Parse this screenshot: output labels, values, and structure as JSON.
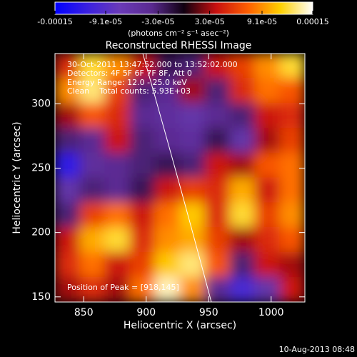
{
  "chart_data": {
    "type": "heatmap",
    "title": "Reconstructed RHESSI Image",
    "xlabel": "Heliocentric X (arcsec)",
    "ylabel": "Heliocentric Y (arcsec)",
    "annotations": [
      "30-Oct-2011 13:47:52.000 to 13:52:02.000",
      "Detectors: 4F 5F 6F 7F 8F, Att 0",
      "Energy Range: 12.0 - 25.0 keV",
      "Clean    Total counts: 5.93E+03"
    ],
    "peak_label": "Position of Peak = [918,145]",
    "footer": "10-Aug-2013 08:48",
    "colorbar_label": "(photons cm⁻² s⁻¹ asec⁻²)",
    "colors": [
      "#0000ff",
      "#3a20e0",
      "#6a3ab8",
      "#5a2a90",
      "#100010",
      "#c81010",
      "#ff6000",
      "#ffd000",
      "#ffffff"
    ],
    "zlim": [
      -0.00015,
      0.00015
    ],
    "zticks": [
      -0.00015,
      {
        "value": -9.1e-05,
        "label": "-9.1e-05"
      },
      {
        "value": -3e-05,
        "label": "-3.0e-05"
      },
      {
        "value": 3e-05,
        "label": "3.0e-05"
      },
      {
        "value": 9.1e-05,
        "label": "9.1e-05"
      },
      0.00015
    ],
    "xlim": [
      827,
      1027
    ],
    "xticks": [
      850,
      900,
      950,
      1000
    ],
    "ylim": [
      146,
      339
    ],
    "yticks": [
      150,
      200,
      250,
      300
    ],
    "z": [
      [
        5e-05,
        0.00012,
        9e-05,
        4e-05,
        -2e-05,
        -3e-05,
        4e-05,
        6e-05,
        9e-05,
        0.00012
      ],
      [
        9e-05,
        0.00013,
        6e-05,
        -3e-05,
        -4e-05,
        3e-05,
        -3e-05,
        5e-05,
        8e-05,
        7e-05
      ],
      [
        3e-05,
        7e-05,
        5e-05,
        -4e-05,
        -5e-05,
        -6e-05,
        -4e-05,
        -3e-05,
        4e-05,
        5e-05
      ],
      [
        -3e-05,
        -4e-05,
        4e-05,
        -3e-05,
        -4e-05,
        -5e-05,
        -2e-05,
        -6e-05,
        3e-05,
        6e-05
      ],
      [
        -0.00012,
        -5e-05,
        -4e-05,
        -3e-05,
        -2e-05,
        -3e-05,
        4e-05,
        3e-05,
        7e-05,
        8e-05
      ],
      [
        -6e-05,
        -3e-05,
        -4e-05,
        -2e-05,
        4e-05,
        6e-05,
        5e-05,
        0.0001,
        4e-05,
        8e-05
      ],
      [
        -3e-05,
        6e-05,
        8e-05,
        4e-05,
        8e-05,
        0.00011,
        5e-05,
        0.00012,
        6e-05,
        9e-05
      ],
      [
        4e-05,
        0.0001,
        0.00012,
        5e-05,
        9e-05,
        0.0001,
        6e-05,
        3e-05,
        5e-05,
        7e-05
      ],
      [
        5e-05,
        8e-05,
        4e-05,
        6e-05,
        0.00011,
        0.00013,
        7e-05,
        -3e-05,
        4e-05,
        3e-05
      ],
      [
        3e-05,
        5e-05,
        3e-05,
        8e-05,
        0.00014,
        9e-05,
        -4e-05,
        -0.0001,
        -6e-05,
        4e-05
      ]
    ]
  }
}
